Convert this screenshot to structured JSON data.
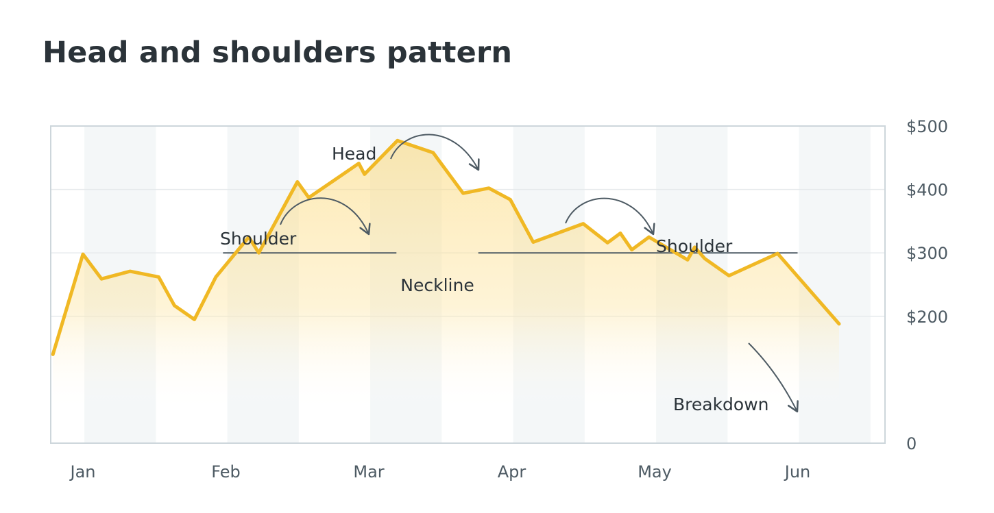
{
  "title": "Head and shoulders pattern",
  "chart_data": {
    "type": "area",
    "title": "Head and shoulders pattern",
    "xlabel": "",
    "ylabel": "",
    "x_ticks": [
      "Jan",
      "Feb",
      "Mar",
      "Apr",
      "May",
      "Jun"
    ],
    "y_ticks": [
      "0",
      "$200",
      "$300",
      "$400",
      "$500"
    ],
    "y_tick_values": [
      0,
      200,
      300,
      400,
      500
    ],
    "ylim": [
      0,
      500
    ],
    "xlim": [
      0,
      5.7
    ],
    "y_axis_position": "right",
    "gridlines": "horizontal",
    "column_bands": "alternating",
    "colors": {
      "line": "#f0b824",
      "fill_top": "#fbd774",
      "band": "#f4f7f8",
      "grid": "#e6eaec",
      "frame": "#cdd6db",
      "neckline": "#4d5a63",
      "annotation_arrow": "#4d5a63"
    },
    "series": [
      {
        "x": [
          -0.21,
          0.0,
          0.13,
          0.33,
          0.53,
          0.64,
          0.78,
          0.93,
          1.16,
          1.23,
          1.5,
          1.58,
          1.93,
          1.97,
          2.2,
          2.45,
          2.66,
          2.84,
          2.99,
          3.15,
          3.5,
          3.67,
          3.76,
          3.84,
          3.96,
          4.23,
          4.28,
          4.35,
          4.52,
          4.86,
          5.29
        ],
        "y": [
          140,
          298,
          259,
          271,
          262,
          217,
          195,
          262,
          325,
          300,
          412,
          387,
          441,
          424,
          477,
          458,
          394,
          402,
          384,
          317,
          346,
          316,
          331,
          305,
          325,
          289,
          309,
          291,
          264,
          299,
          188
        ]
      }
    ],
    "neckline": {
      "label": "Neckline",
      "y": 300,
      "x_start": 0.98,
      "x_end": 5.0
    },
    "annotations": [
      {
        "label": "Head"
      },
      {
        "label": "Shoulder"
      },
      {
        "label": "Shoulder"
      },
      {
        "label": "Breakdown"
      }
    ]
  }
}
